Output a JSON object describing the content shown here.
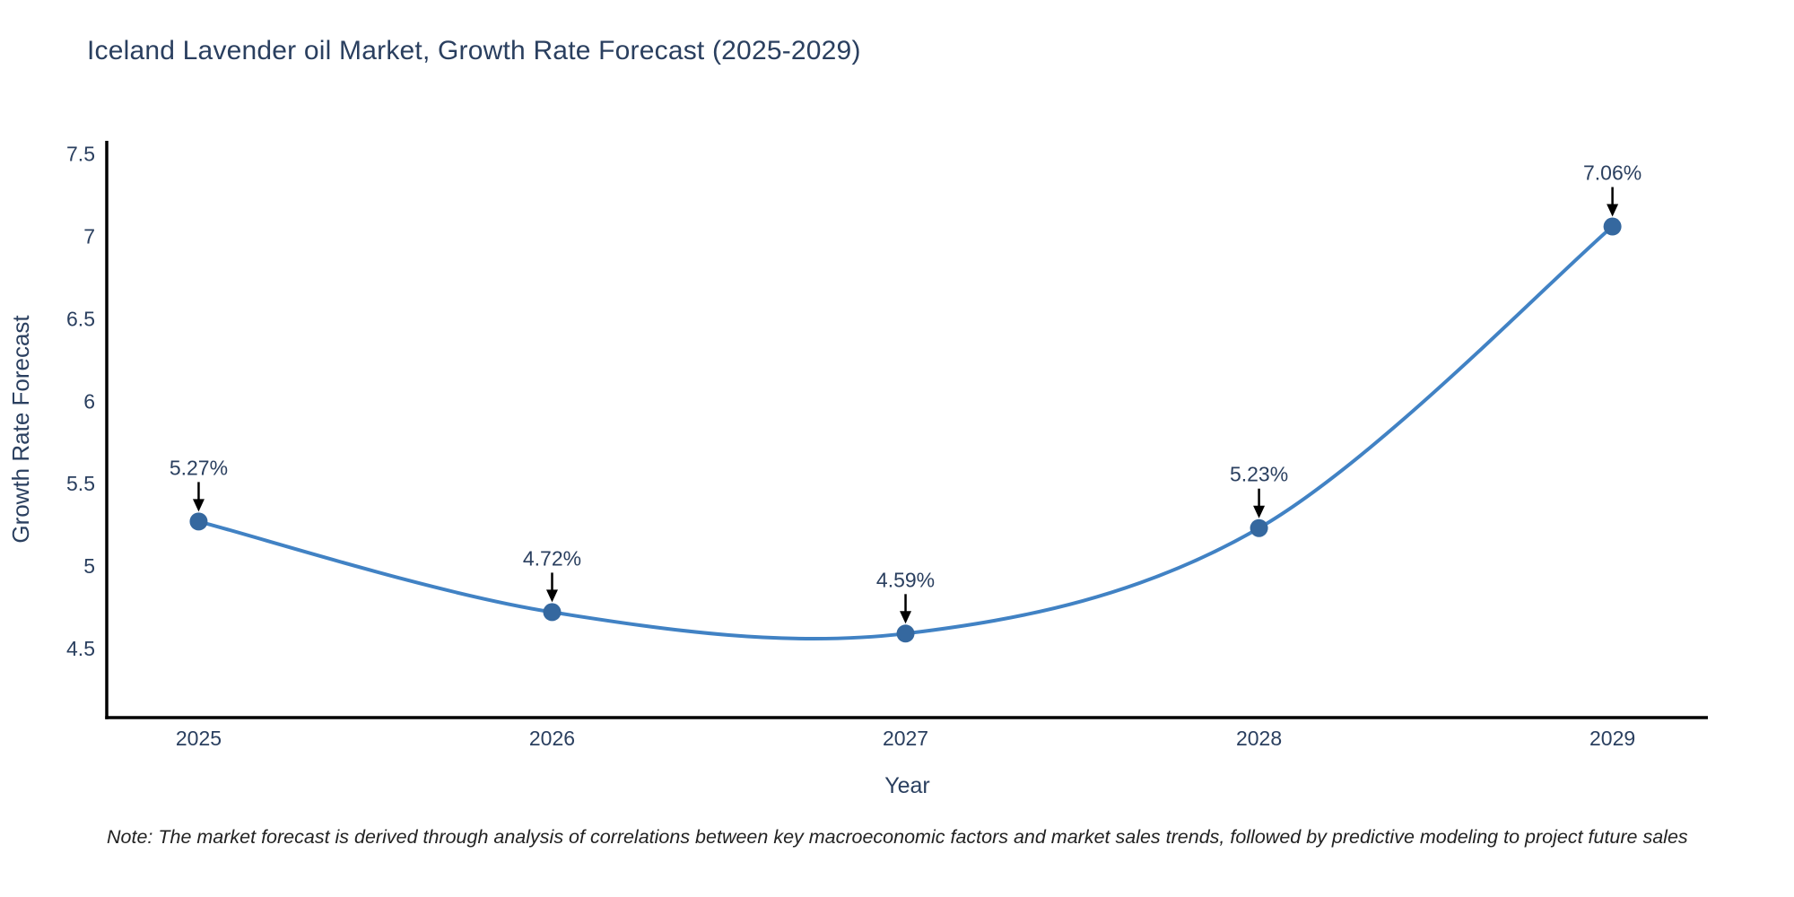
{
  "title": "Iceland Lavender oil Market, Growth Rate Forecast (2025-2029)",
  "note": "Note: The market forecast is derived through analysis of correlations between key macroeconomic factors and market sales trends, followed by predictive modeling to project future sales",
  "chart_data": {
    "type": "line",
    "title": "Iceland Lavender oil Market, Growth Rate Forecast (2025-2029)",
    "x": [
      2025,
      2026,
      2027,
      2028,
      2029
    ],
    "xtick_labels": [
      "2025",
      "2026",
      "2027",
      "2028",
      "2029"
    ],
    "series": [
      {
        "name": "Growth Rate Forecast",
        "values": [
          5.27,
          4.72,
          4.59,
          5.23,
          7.06
        ]
      }
    ],
    "point_labels": [
      "5.27%",
      "4.72%",
      "4.59%",
      "5.23%",
      "7.06%"
    ],
    "xlabel": "Year",
    "ylabel": "Growth Rate Forecast",
    "ytick_labels": [
      "4.5",
      "5",
      "5.5",
      "6",
      "6.5",
      "7",
      "7.5"
    ],
    "ylim": [
      4.08,
      7.58
    ],
    "xlim": [
      2024.74,
      2029.27
    ],
    "line_shape": "spline",
    "grid": false,
    "legend": "none",
    "colors": {
      "line": "#4182c4",
      "marker": "#35689f",
      "axis": "#000000",
      "text": "#2a3f5f",
      "annotation_text": "#2a3f5f",
      "annotation_arrow": "#000000",
      "background": "#ffffff"
    }
  }
}
